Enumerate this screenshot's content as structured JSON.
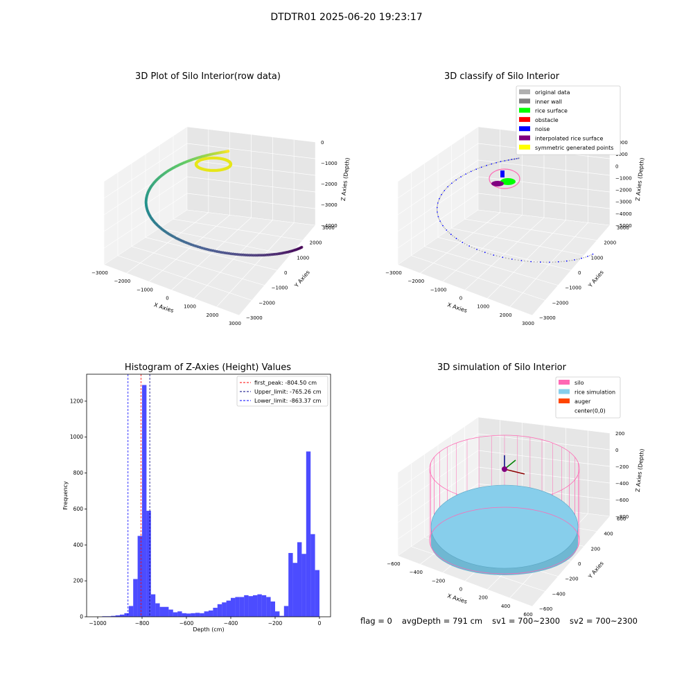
{
  "figure": {
    "suptitle": "DTDTR01 2025-06-20 19:23:17"
  },
  "panels": {
    "raw": {
      "title": "3D Plot of Silo Interior(row data)",
      "xlabel": "X Axies",
      "ylabel": "Y Axies",
      "zlabel": "Z Axies (Depth)",
      "xticks": [
        "−3000",
        "−2000",
        "−1000",
        "0",
        "1000",
        "2000",
        "3000"
      ],
      "yticks": [
        "−3000",
        "−2000",
        "−1000",
        "0",
        "1000",
        "2000",
        "3000"
      ],
      "zticks": [
        "−4000",
        "−3000",
        "−2000",
        "−1000",
        "0"
      ]
    },
    "classify": {
      "title": "3D classify of Silo Interior",
      "xlabel": "X Axies",
      "ylabel": "Y Axies",
      "zlabel": "Z Axies (Depth)",
      "xticks": [
        "−3000",
        "−2000",
        "−1000",
        "0",
        "1000",
        "2000",
        "3000"
      ],
      "yticks": [
        "−3000",
        "−2000",
        "−1000",
        "0",
        "1000",
        "2000",
        "3000"
      ],
      "zticks": [
        "−5000",
        "−4000",
        "−3000",
        "−2000",
        "−1000",
        "0",
        "1000",
        "2000"
      ],
      "legend": [
        {
          "label": "original data",
          "color": "#b0b0b0"
        },
        {
          "label": "inner wall",
          "color": "#808080"
        },
        {
          "label": "rice surface",
          "color": "#00ff00"
        },
        {
          "label": "obstacle",
          "color": "#ff0000"
        },
        {
          "label": "noise",
          "color": "#0000ff"
        },
        {
          "label": "interpolated rice surface",
          "color": "#800080"
        },
        {
          "label": "symmetric generated points",
          "color": "#ffff00"
        }
      ]
    },
    "simulation": {
      "title": "3D simulation of Silo Interior",
      "xlabel": "X Axies",
      "ylabel": "Y Axies",
      "zlabel": "Z Axies (Depth)",
      "xticks": [
        "−600",
        "−400",
        "−200",
        "0",
        "200",
        "400",
        "600"
      ],
      "yticks": [
        "−600",
        "−400",
        "−200",
        "0",
        "200",
        "400",
        "600"
      ],
      "zticks": [
        "−800",
        "−600",
        "−400",
        "−200",
        "0",
        "200"
      ],
      "legend": [
        {
          "label": "silo",
          "color": "#ff69b4"
        },
        {
          "label": "rice simulation",
          "color": "#87ceeb"
        },
        {
          "label": "auger",
          "color": "#ff4500"
        },
        {
          "label": "center(0,0)",
          "color": ""
        }
      ]
    }
  },
  "status": {
    "flag": "flag = 0",
    "avg_depth": "avgDepth = 791 cm",
    "sv1": "sv1 = 700~2300",
    "sv2": "sv2 = 700~2300"
  },
  "chart_data": [
    {
      "type": "scatter",
      "title": "3D Plot of Silo Interior(row data)",
      "xlabel": "X Axies",
      "ylabel": "Y Axies",
      "zlabel": "Z Axies (Depth)",
      "xlim": [
        -3000,
        3000
      ],
      "ylim": [
        -3000,
        3000
      ],
      "zlim": [
        -4500,
        0
      ],
      "colormap": "viridis"
    },
    {
      "type": "scatter",
      "title": "3D classify of Silo Interior",
      "xlabel": "X Axies",
      "ylabel": "Y Axies",
      "zlabel": "Z Axies (Depth)",
      "xlim": [
        -3000,
        3000
      ],
      "ylim": [
        -3000,
        3000
      ],
      "zlim": [
        -5000,
        2000
      ],
      "legend_position": "top-right"
    },
    {
      "type": "bar",
      "title": "Histogram of Z-Axies (Height) Values",
      "xlabel": "Depth (cm)",
      "ylabel": "Frequency",
      "xlim": [
        -1050,
        50
      ],
      "ylim": [
        0,
        1350
      ],
      "xticks": [
        -1000,
        -800,
        -600,
        -400,
        -200,
        0
      ],
      "yticks": [
        0,
        200,
        400,
        600,
        800,
        1000,
        1200
      ],
      "bin_width": 20,
      "bar_color": "#0000ff",
      "bins": [
        {
          "x": -980,
          "y": 3
        },
        {
          "x": -960,
          "y": 3
        },
        {
          "x": -940,
          "y": 5
        },
        {
          "x": -920,
          "y": 8
        },
        {
          "x": -900,
          "y": 12
        },
        {
          "x": -880,
          "y": 20
        },
        {
          "x": -860,
          "y": 60
        },
        {
          "x": -840,
          "y": 210
        },
        {
          "x": -820,
          "y": 450
        },
        {
          "x": -800,
          "y": 1290
        },
        {
          "x": -780,
          "y": 590
        },
        {
          "x": -760,
          "y": 125
        },
        {
          "x": -740,
          "y": 75
        },
        {
          "x": -720,
          "y": 55
        },
        {
          "x": -700,
          "y": 55
        },
        {
          "x": -680,
          "y": 40
        },
        {
          "x": -660,
          "y": 25
        },
        {
          "x": -640,
          "y": 30
        },
        {
          "x": -620,
          "y": 20
        },
        {
          "x": -600,
          "y": 18
        },
        {
          "x": -580,
          "y": 20
        },
        {
          "x": -560,
          "y": 22
        },
        {
          "x": -540,
          "y": 20
        },
        {
          "x": -520,
          "y": 30
        },
        {
          "x": -500,
          "y": 35
        },
        {
          "x": -480,
          "y": 50
        },
        {
          "x": -460,
          "y": 70
        },
        {
          "x": -440,
          "y": 80
        },
        {
          "x": -420,
          "y": 90
        },
        {
          "x": -400,
          "y": 105
        },
        {
          "x": -380,
          "y": 110
        },
        {
          "x": -360,
          "y": 110
        },
        {
          "x": -340,
          "y": 120
        },
        {
          "x": -320,
          "y": 115
        },
        {
          "x": -300,
          "y": 120
        },
        {
          "x": -280,
          "y": 125
        },
        {
          "x": -260,
          "y": 120
        },
        {
          "x": -240,
          "y": 110
        },
        {
          "x": -220,
          "y": 85
        },
        {
          "x": -200,
          "y": 30
        },
        {
          "x": -180,
          "y": 5
        },
        {
          "x": -160,
          "y": 60
        },
        {
          "x": -140,
          "y": 355
        },
        {
          "x": -120,
          "y": 300
        },
        {
          "x": -100,
          "y": 415
        },
        {
          "x": -80,
          "y": 350
        },
        {
          "x": -60,
          "y": 920
        },
        {
          "x": -40,
          "y": 460
        },
        {
          "x": -20,
          "y": 260
        },
        {
          "x": 0,
          "y": 0
        }
      ],
      "vlines": [
        {
          "label": "first_peak: -804.50 cm",
          "x": -804.5,
          "color": "#ff0000",
          "style": "dashed"
        },
        {
          "label": "Upper_limit: -765.26 cm",
          "x": -765.26,
          "color": "#000080",
          "style": "dashed"
        },
        {
          "label": "Lower_limit: -863.37 cm",
          "x": -863.37,
          "color": "#0000ff",
          "style": "dashed"
        }
      ],
      "legend_position": "top-right"
    },
    {
      "type": "scatter",
      "title": "3D simulation of Silo Interior",
      "xlabel": "X Axies",
      "ylabel": "Y Axies",
      "zlabel": "Z Axies (Depth)",
      "xlim": [
        -650,
        650
      ],
      "ylim": [
        -650,
        650
      ],
      "zlim": [
        -900,
        300
      ],
      "legend_position": "top-right"
    }
  ]
}
